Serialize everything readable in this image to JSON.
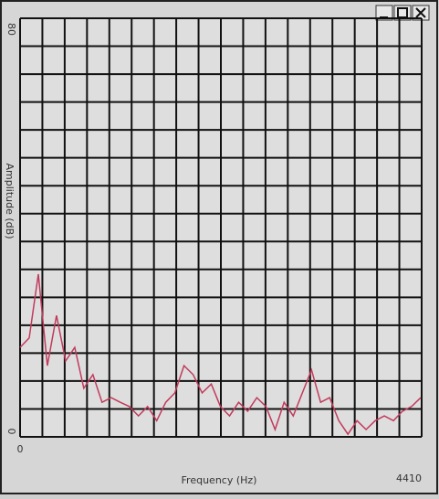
{
  "chart_data": {
    "type": "line",
    "y_label": "Amplitude (dB)",
    "x_label": "Frequency (Hz)",
    "x": [
      0,
      100,
      200,
      300,
      400,
      500,
      600,
      700,
      800,
      900,
      1000,
      1100,
      1200,
      1300,
      1400,
      1500,
      1600,
      1700,
      1800,
      1900,
      2000,
      2100,
      2200,
      2300,
      2400,
      2500,
      2600,
      2700,
      2800,
      2900,
      3000,
      3100,
      3200,
      3300,
      3400,
      3500,
      3600,
      3700,
      3800,
      3900,
      4000,
      4100,
      4200,
      4300,
      4400
    ],
    "values": [
      17.1,
      18.9,
      31.1,
      13.6,
      23.2,
      14.5,
      17.1,
      9.3,
      11.9,
      6.6,
      7.5,
      6.6,
      5.8,
      4.0,
      5.8,
      3.1,
      6.6,
      8.4,
      13.6,
      11.9,
      8.4,
      10.1,
      5.8,
      4.0,
      6.6,
      4.9,
      7.5,
      5.8,
      1.4,
      6.6,
      4.0,
      8.4,
      12.8,
      6.6,
      7.5,
      3.1,
      0.5,
      3.1,
      1.4,
      3.1,
      4.0,
      3.1,
      4.9,
      5.8,
      7.5
    ],
    "color": "#c23a5c",
    "xlim": [
      0,
      4410
    ],
    "xticks": [
      0,
      4410
    ],
    "ylim": [
      0,
      80
    ],
    "yticks": [
      0,
      80
    ],
    "grid": true
  }
}
